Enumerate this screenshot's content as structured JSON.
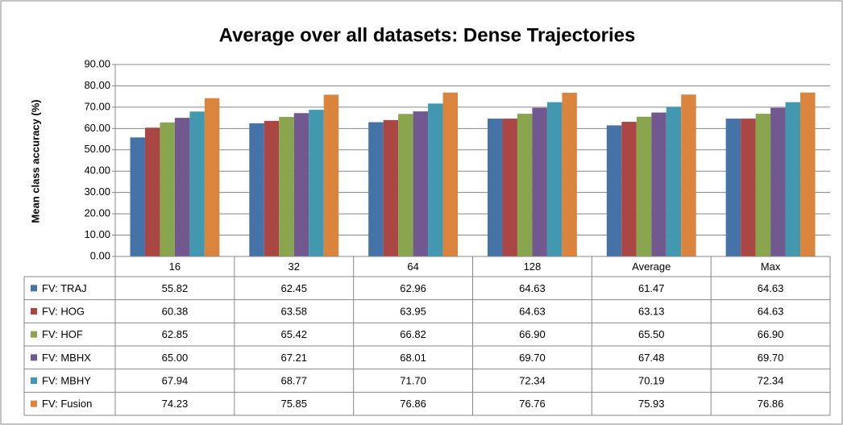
{
  "chart_data": {
    "type": "bar",
    "title": "Average over all datasets: Dense Trajectories",
    "y_label": "Mean class accuracy (%)",
    "categories": [
      "16",
      "32",
      "64",
      "128",
      "Average",
      "Max"
    ],
    "ylim": [
      0,
      90
    ],
    "yticks": [
      {
        "value": 0,
        "label": "0.00"
      },
      {
        "value": 10,
        "label": "10.00"
      },
      {
        "value": 20,
        "label": "20.00"
      },
      {
        "value": 30,
        "label": "30.00"
      },
      {
        "value": 40,
        "label": "40.00"
      },
      {
        "value": 50,
        "label": "50.00"
      },
      {
        "value": 60,
        "label": "60.00"
      },
      {
        "value": 70,
        "label": "70.00"
      },
      {
        "value": 80,
        "label": "80.00"
      },
      {
        "value": 90,
        "label": "90.00"
      }
    ],
    "grid": true,
    "series": [
      {
        "name": "FV: TRAJ",
        "color": "#4572a7",
        "values": [
          55.82,
          62.45,
          62.96,
          64.63,
          61.47,
          64.63
        ],
        "value_labels": [
          "55.82",
          "62.45",
          "62.96",
          "64.63",
          "61.47",
          "64.63"
        ]
      },
      {
        "name": "FV: HOG",
        "color": "#aa4643",
        "values": [
          60.38,
          63.58,
          63.95,
          64.63,
          63.13,
          64.63
        ],
        "value_labels": [
          "60.38",
          "63.58",
          "63.95",
          "64.63",
          "63.13",
          "64.63"
        ]
      },
      {
        "name": "FV: HOF",
        "color": "#89a54e",
        "values": [
          62.85,
          65.42,
          66.82,
          66.9,
          65.5,
          66.9
        ],
        "value_labels": [
          "62.85",
          "65.42",
          "66.82",
          "66.90",
          "65.50",
          "66.90"
        ]
      },
      {
        "name": "FV: MBHX",
        "color": "#71588f",
        "values": [
          65,
          67.21,
          68.01,
          69.7,
          67.48,
          69.7
        ],
        "value_labels": [
          "65.00",
          "67.21",
          "68.01",
          "69.70",
          "67.48",
          "69.70"
        ]
      },
      {
        "name": "FV: MBHY",
        "color": "#4198af",
        "values": [
          67.94,
          68.77,
          71.7,
          72.34,
          70.19,
          72.34
        ],
        "value_labels": [
          "67.94",
          "68.77",
          "71.70",
          "72.34",
          "70.19",
          "72.34"
        ]
      },
      {
        "name": "FV: Fusion",
        "color": "#db843d",
        "values": [
          74.23,
          75.85,
          76.86,
          76.76,
          75.93,
          76.86
        ],
        "value_labels": [
          "74.23",
          "75.85",
          "76.86",
          "76.76",
          "75.93",
          "76.86"
        ]
      }
    ]
  }
}
